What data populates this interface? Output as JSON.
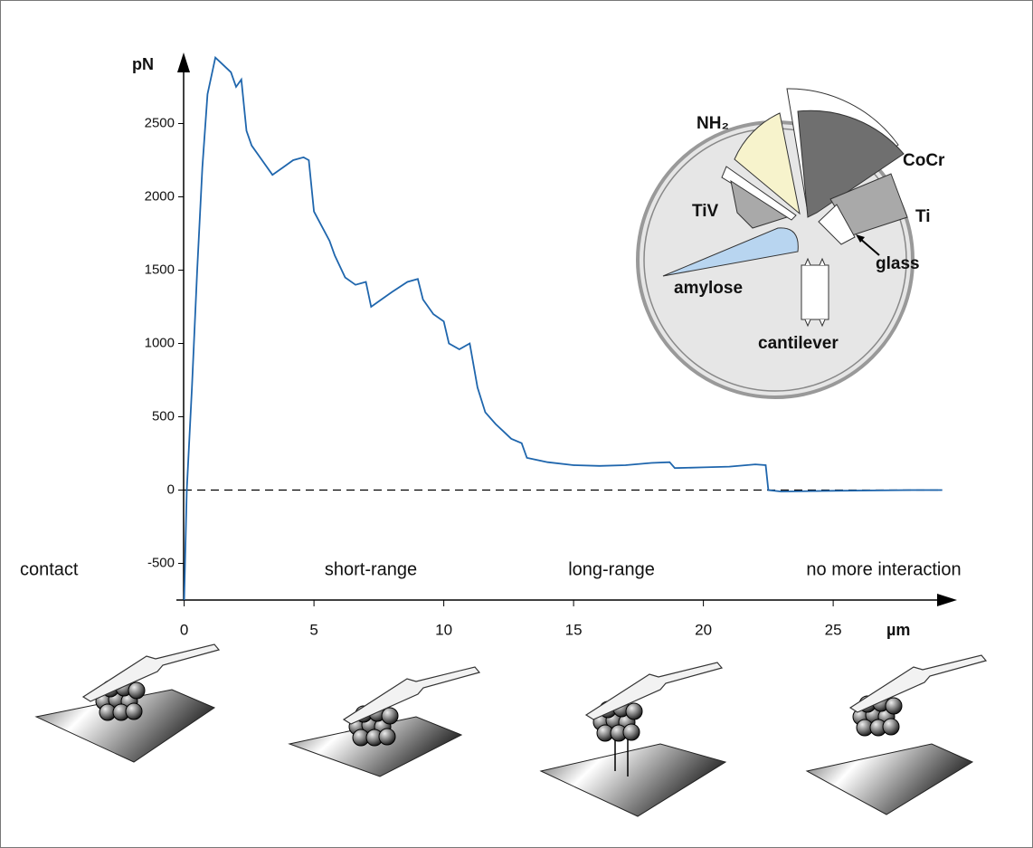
{
  "chart_data": {
    "type": "line",
    "y_label": "pN",
    "x_label": "µm",
    "annotations": [
      "contact",
      "short-range",
      "long-range",
      "no more interaction"
    ],
    "inset_labels": [
      "NH₂",
      "CoCr",
      "TiV",
      "Ti",
      "glass",
      "amylose",
      "cantilever"
    ],
    "x": [
      0,
      0.1,
      0.3,
      0.5,
      0.7,
      0.9,
      1.2,
      1.5,
      1.8,
      2.0,
      2.2,
      2.4,
      2.6,
      3.0,
      3.4,
      3.8,
      4.2,
      4.6,
      4.8,
      5.0,
      5.3,
      5.6,
      5.8,
      6.2,
      6.6,
      7.0,
      7.2,
      7.6,
      8.0,
      8.6,
      9.0,
      9.2,
      9.6,
      10.0,
      10.2,
      10.6,
      11.0,
      11.3,
      11.6,
      12.0,
      12.3,
      12.6,
      13.0,
      13.2,
      14,
      15,
      16,
      17,
      18,
      18.7,
      18.9,
      20,
      21,
      22,
      22.4,
      22.5,
      23,
      25,
      28,
      29.2
    ],
    "values": [
      -750,
      0,
      700,
      1500,
      2200,
      2700,
      2950,
      2900,
      2850,
      2750,
      2800,
      2450,
      2350,
      2250,
      2150,
      2200,
      2250,
      2270,
      2250,
      1900,
      1800,
      1700,
      1600,
      1450,
      1400,
      1420,
      1250,
      1300,
      1350,
      1420,
      1440,
      1300,
      1200,
      1150,
      1000,
      960,
      1000,
      700,
      530,
      450,
      400,
      350,
      320,
      220,
      190,
      170,
      165,
      170,
      185,
      190,
      150,
      155,
      160,
      175,
      170,
      0,
      -10,
      -5,
      0,
      0
    ],
    "color": "#1f66ad",
    "xlim": [
      -0.3,
      29.7
    ],
    "ylim": [
      -750,
      2950
    ],
    "xticks": [
      0,
      5,
      10,
      15,
      20,
      25
    ],
    "yticks": [
      -500,
      0,
      500,
      1000,
      1500,
      2000,
      2500
    ],
    "hline": 0
  }
}
